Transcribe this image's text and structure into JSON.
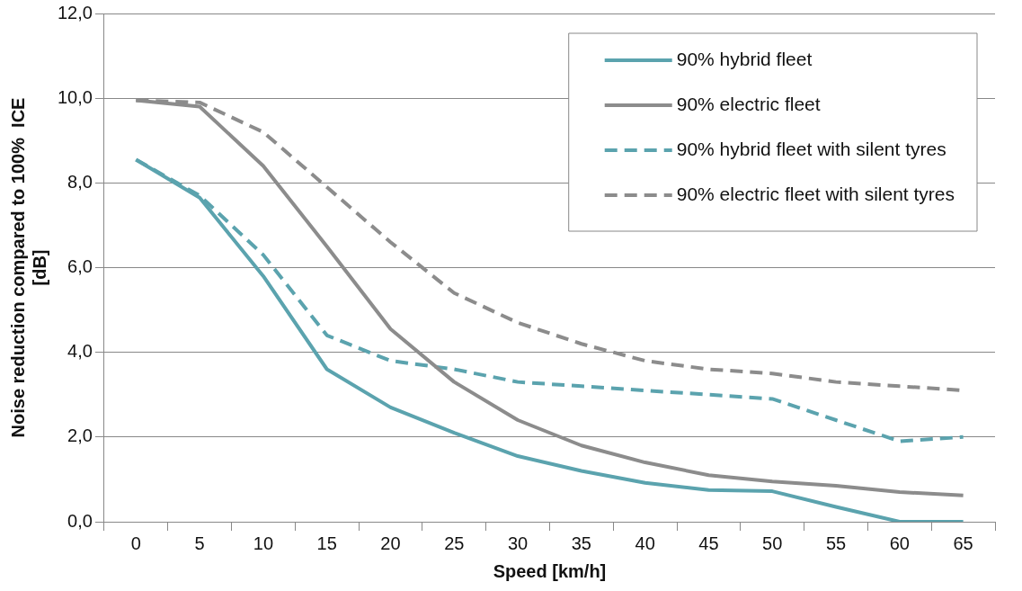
{
  "chart_data": {
    "type": "line",
    "xlabel": "Speed [km/h]",
    "ylabel": "Noise reduction compared to 100%  ICE\n[dB]",
    "categories": [
      "0",
      "5",
      "10",
      "15",
      "20",
      "25",
      "30",
      "35",
      "40",
      "45",
      "50",
      "55",
      "60",
      "65"
    ],
    "ylim": [
      0,
      12
    ],
    "yticks": [
      {
        "value": 0,
        "label": "0,0"
      },
      {
        "value": 2,
        "label": "2,0"
      },
      {
        "value": 4,
        "label": "4,0"
      },
      {
        "value": 6,
        "label": "6,0"
      },
      {
        "value": 8,
        "label": "8,0"
      },
      {
        "value": 10,
        "label": "10,0"
      },
      {
        "value": 12,
        "label": "12,0"
      }
    ],
    "grid": "y",
    "legend": "top right",
    "marker": "none",
    "series": [
      {
        "name": "90% hybrid fleet",
        "color": "#5ba3ae",
        "line_style": "solid",
        "values": [
          8.55,
          7.65,
          5.8,
          3.6,
          2.7,
          2.1,
          1.55,
          1.2,
          0.92,
          0.75,
          0.72,
          0.35,
          0,
          0
        ]
      },
      {
        "name": "90% electric fleet",
        "color": "#8c8c8c",
        "line_style": "solid",
        "values": [
          9.95,
          9.8,
          8.4,
          6.5,
          4.55,
          3.3,
          2.4,
          1.8,
          1.4,
          1.1,
          0.95,
          0.85,
          0.7,
          0.62
        ]
      },
      {
        "name": "90% hybrid fleet with silent tyres",
        "color": "#5ba3ae",
        "line_style": "dashed",
        "values": [
          8.55,
          7.7,
          6.3,
          4.4,
          3.8,
          3.6,
          3.3,
          3.2,
          3.1,
          3.0,
          2.9,
          2.4,
          1.9,
          2.0
        ]
      },
      {
        "name": "90% electric fleet with silent tyres",
        "color": "#8c8c8c",
        "line_style": "dashed",
        "values": [
          9.95,
          9.9,
          9.2,
          7.9,
          6.6,
          5.4,
          4.7,
          4.2,
          3.8,
          3.6,
          3.5,
          3.3,
          3.2,
          3.1
        ]
      }
    ]
  }
}
